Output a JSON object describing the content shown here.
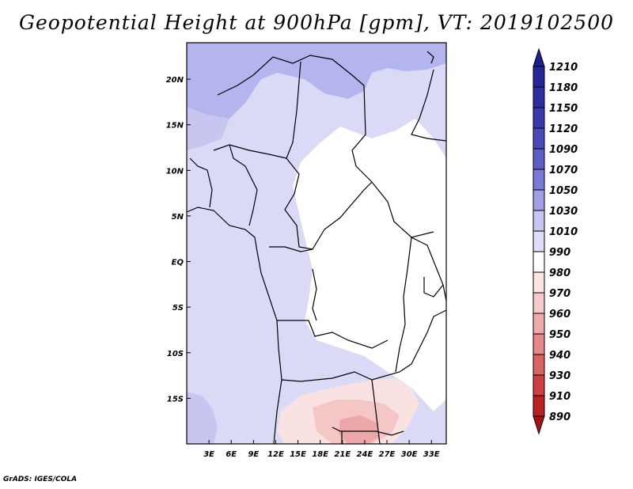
{
  "title": "Geopotential Height at 900hPa [gpm], VT: 2019102500",
  "footer": "GrADS: IGES/COLA",
  "map": {
    "lon_range": [
      0,
      35
    ],
    "lat_range": [
      -20,
      24
    ],
    "lat_ticks": [
      {
        "lat": 20,
        "label": "20N"
      },
      {
        "lat": 15,
        "label": "15N"
      },
      {
        "lat": 10,
        "label": "10N"
      },
      {
        "lat": 5,
        "label": "5N"
      },
      {
        "lat": 0,
        "label": "EQ"
      },
      {
        "lat": -5,
        "label": "5S"
      },
      {
        "lat": -10,
        "label": "10S"
      },
      {
        "lat": -15,
        "label": "15S"
      }
    ],
    "lon_ticks": [
      {
        "lon": 3,
        "label": "3E"
      },
      {
        "lon": 6,
        "label": "6E"
      },
      {
        "lon": 9,
        "label": "9E"
      },
      {
        "lon": 12,
        "label": "12E"
      },
      {
        "lon": 15,
        "label": "15E"
      },
      {
        "lon": 18,
        "label": "18E"
      },
      {
        "lon": 21,
        "label": "21E"
      },
      {
        "lon": 24,
        "label": "24E"
      },
      {
        "lon": 27,
        "label": "27E"
      },
      {
        "lon": 30,
        "label": "30E"
      },
      {
        "lon": 33,
        "label": "33E"
      }
    ]
  },
  "colorbar": {
    "labels": [
      "1210",
      "1180",
      "1150",
      "1120",
      "1090",
      "1070",
      "1050",
      "1030",
      "1010",
      "990",
      "980",
      "970",
      "960",
      "950",
      "940",
      "930",
      "910",
      "890"
    ],
    "colors": [
      "#1e1e8c",
      "#262696",
      "#2e2ea2",
      "#3a3aae",
      "#4a4aba",
      "#5e5ec8",
      "#7a7ad8",
      "#a0a0e8",
      "#c6c6f0",
      "#dedef8",
      "#ffffff",
      "#fbe4e4",
      "#f6caca",
      "#eeaaaa",
      "#e48888",
      "#d86464",
      "#cc4040",
      "#ba2222",
      "#a41414"
    ]
  },
  "colors": {
    "high1": "#a8a8ec",
    "high2": "#c6c6f0",
    "high3": "#dadaf6",
    "neutral": "#ffffff",
    "low1": "#fbe0e0",
    "low2": "#f4c4c4",
    "low3": "#eaa6a6"
  }
}
